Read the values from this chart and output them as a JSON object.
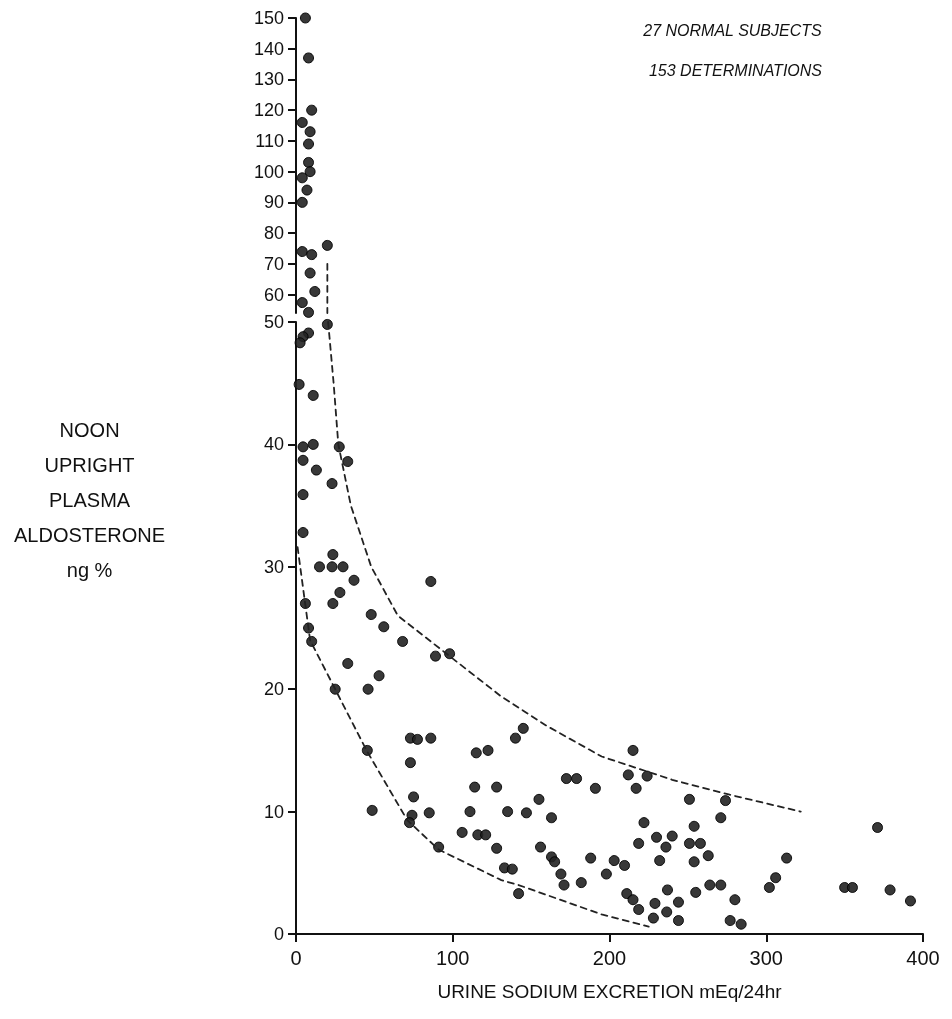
{
  "chart_data": [
    {
      "type": "scatter",
      "xlim": [
        0,
        400
      ],
      "ylim": [
        54,
        150
      ],
      "yticks": [
        60,
        70,
        80,
        90,
        100,
        110,
        120,
        130,
        140,
        150
      ],
      "tick_labels": "y",
      "grid": false,
      "annotations": [
        "27 NORMAL SUBJECTS",
        "153 DETERMINATIONS"
      ],
      "series": [
        {
          "marker": "circle",
          "color": "#222222",
          "x": [
            6,
            8,
            10,
            4,
            9,
            8,
            8,
            9,
            4,
            7,
            4,
            20,
            4,
            10,
            9,
            12,
            4,
            8
          ],
          "values": [
            150,
            137,
            120,
            116,
            113,
            109,
            103,
            100,
            98,
            94,
            90,
            76,
            74,
            73,
            67,
            61,
            57.4,
            54.2
          ]
        },
        {
          "type": "line",
          "marker": "none",
          "line_style": "dashed",
          "color": "#222222",
          "x": [
            20,
            20
          ],
          "values": [
            70,
            54
          ]
        }
      ]
    },
    {
      "type": "scatter",
      "xlabel": "URINE SODIUM EXCRETION mEq/24hr",
      "ylabel": "NOON\nUPRIGHT\nPLASMA\nALDOSTERONE\nng %",
      "xlim": [
        0,
        400
      ],
      "xticks": [
        0,
        100,
        200,
        300,
        400
      ],
      "ylim": [
        0,
        50
      ],
      "yticks": [
        0,
        10,
        20,
        30,
        40,
        50
      ],
      "grid": false,
      "series": [
        {
          "marker": "circle",
          "color": "#222222",
          "x": [
            20,
            8,
            4.5,
            2.6,
            2,
            11,
            11,
            4.5,
            27.6,
            4.5,
            33,
            13,
            23,
            4.5,
            4.5,
            23.5,
            15,
            23,
            30,
            37,
            86,
            28,
            23.5,
            6,
            48,
            56,
            8,
            10,
            68,
            89,
            98,
            33,
            53,
            25,
            46,
            73,
            77.5,
            86,
            45.5,
            73,
            75,
            114,
            128,
            115,
            122.5,
            140,
            145,
            48.6,
            74,
            72.4,
            85,
            111,
            135,
            91,
            106,
            116,
            121,
            128,
            133,
            138,
            142,
            147,
            155,
            163,
            156,
            163,
            165,
            169,
            171,
            182,
            188,
            191,
            172.5,
            179,
            198,
            203,
            209.6,
            215,
            212,
            224,
            217,
            222,
            230,
            218.6,
            240,
            236,
            232,
            211,
            215,
            218.6,
            228,
            229,
            237,
            236.5,
            244,
            244,
            251,
            254,
            251,
            258,
            254,
            263,
            255,
            264,
            271,
            274,
            271,
            280,
            277,
            284,
            313,
            306,
            302,
            350,
            355,
            371,
            379,
            392
          ],
          "values": [
            49.8,
            49.1,
            48.8,
            48.3,
            44.9,
            44,
            40,
            39.8,
            39.8,
            38.7,
            38.6,
            37.9,
            36.8,
            35.9,
            32.8,
            31,
            30,
            30,
            30,
            28.9,
            28.8,
            27.9,
            27,
            27,
            26.1,
            25.1,
            25,
            23.9,
            23.9,
            22.7,
            22.9,
            22.1,
            21.1,
            20,
            20,
            16,
            15.9,
            16,
            15,
            14,
            11.2,
            12,
            12,
            14.8,
            15,
            16,
            16.8,
            10.1,
            9.7,
            9.1,
            9.9,
            10,
            10,
            7.1,
            8.3,
            8.1,
            8.1,
            7,
            5.4,
            5.3,
            3.3,
            9.9,
            11,
            9.5,
            7.1,
            6.3,
            5.9,
            4.9,
            4,
            4.2,
            6.2,
            11.9,
            12.7,
            12.7,
            4.9,
            6,
            5.6,
            15,
            13,
            12.9,
            11.9,
            9.1,
            7.9,
            7.4,
            8,
            7.1,
            6,
            3.3,
            2.8,
            2,
            1.3,
            2.5,
            3.6,
            1.8,
            2.6,
            1.1,
            11,
            8.8,
            7.4,
            7.4,
            5.9,
            6.4,
            3.4,
            4,
            4,
            10.9,
            9.5,
            2.8,
            1.1,
            0.8,
            6.2,
            4.6,
            3.8,
            3.8,
            3.8,
            8.7,
            3.6,
            2.7
          ]
        },
        {
          "type": "line",
          "marker": "none",
          "line_style": "dashed",
          "color": "#222222",
          "x": [
            20.5,
            24,
            27,
            35,
            48,
            65,
            95,
            131,
            160,
            195,
            240,
            276,
            322
          ],
          "values": [
            50,
            45,
            40,
            35,
            30,
            26,
            23,
            19.4,
            17,
            14.5,
            12.6,
            11.4,
            10
          ]
        },
        {
          "type": "line",
          "marker": "none",
          "line_style": "dashed",
          "color": "#222222",
          "x": [
            1,
            9,
            25,
            45,
            71,
            91,
            131,
            142,
            195,
            225
          ],
          "values": [
            31.6,
            24,
            20,
            15,
            9.3,
            6.9,
            4.4,
            4,
            1.6,
            0.6
          ]
        }
      ]
    }
  ]
}
